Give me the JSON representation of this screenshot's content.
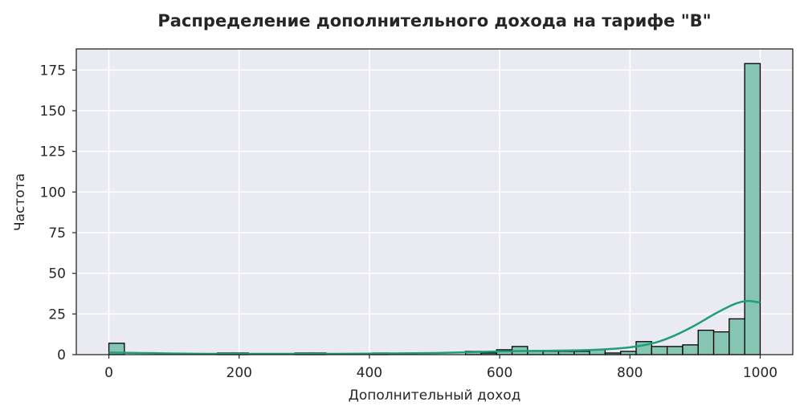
{
  "chart_data": {
    "type": "bar",
    "title": "Распределение дополнительного дохода на тарифе \"В\"",
    "xlabel": "Дополнительный доход",
    "ylabel": "Частота",
    "xlim": [
      -50,
      1050
    ],
    "ylim": [
      0,
      188
    ],
    "x_ticks": [
      "0",
      "200",
      "400",
      "600",
      "800",
      "1000"
    ],
    "y_ticks": [
      "0",
      "25",
      "50",
      "75",
      "100",
      "125",
      "150",
      "175"
    ],
    "grid": true,
    "bin_start": 0,
    "bin_width": 23.81,
    "values": [
      7,
      0,
      0,
      0,
      0,
      0,
      0,
      1,
      1,
      0,
      0,
      0,
      1,
      1,
      0,
      0,
      0,
      1,
      0,
      0,
      0,
      0,
      0,
      2,
      1,
      3,
      5,
      2,
      2,
      2,
      2,
      3,
      1,
      2,
      8,
      5,
      5,
      6,
      15,
      14,
      22,
      179
    ],
    "kde": {
      "x": [
        0,
        50,
        100,
        150,
        200,
        250,
        300,
        350,
        400,
        450,
        500,
        550,
        600,
        650,
        700,
        750,
        800,
        840,
        870,
        900,
        930,
        960,
        980,
        1000
      ],
      "y": [
        1.3,
        1.0,
        0.7,
        0.5,
        0.5,
        0.5,
        0.5,
        0.5,
        0.6,
        0.8,
        1.0,
        1.5,
        2.0,
        2.3,
        2.5,
        3.0,
        4.5,
        7.5,
        12,
        18,
        25,
        31,
        33,
        32
      ]
    },
    "colors": {
      "bar_fill": "#86c5b2",
      "bar_edge": "#000000",
      "kde_line": "#1f9e77",
      "plot_bg": "#eaeaf2",
      "grid": "#ffffff",
      "text": "#262626"
    }
  }
}
